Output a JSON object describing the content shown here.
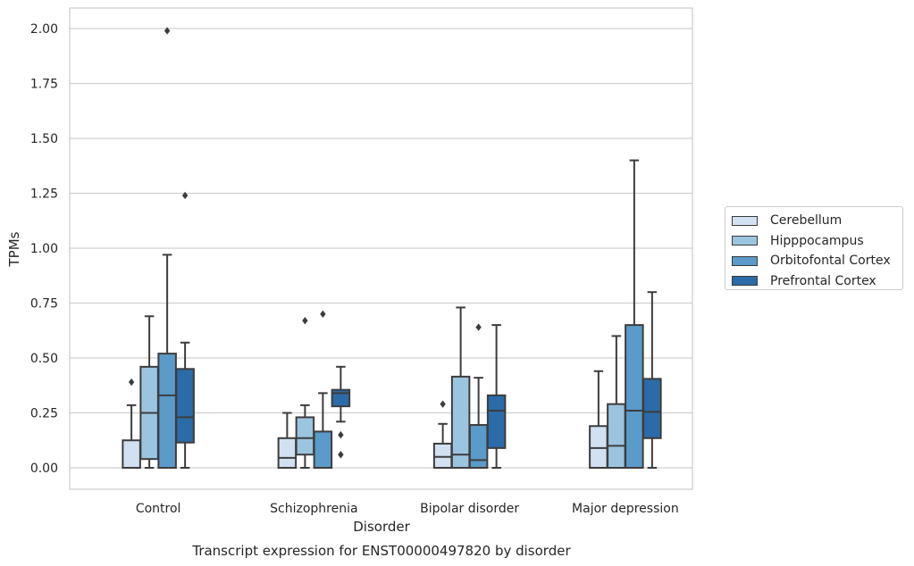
{
  "chart_data": {
    "type": "box",
    "title": "Transcript expression for ENST00000497820 by disorder",
    "xlabel": "Disorder",
    "ylabel": "TPMs",
    "ylim": [
      -0.1,
      2.1
    ],
    "yticks": [
      "0.00",
      "0.25",
      "0.50",
      "0.75",
      "1.00",
      "1.25",
      "1.50",
      "1.75",
      "2.00"
    ],
    "categories": [
      "Control",
      "Schizophrenia",
      "Bipolar disorder",
      "Major depression"
    ],
    "grid": "horizontal",
    "legend_position": "right",
    "series": [
      {
        "name": "Cerebellum",
        "color": "#d1e1f1",
        "boxes": [
          {
            "whislo": 0.0,
            "q1": 0.0,
            "med": 0.0,
            "q3": 0.125,
            "whishi": 0.285,
            "fliers": [
              0.39
            ]
          },
          {
            "whislo": 0.0,
            "q1": 0.0,
            "med": 0.045,
            "q3": 0.135,
            "whishi": 0.25,
            "fliers": []
          },
          {
            "whislo": 0.0,
            "q1": 0.0,
            "med": 0.05,
            "q3": 0.11,
            "whishi": 0.2,
            "fliers": [
              0.29
            ]
          },
          {
            "whislo": 0.0,
            "q1": 0.0,
            "med": 0.09,
            "q3": 0.19,
            "whishi": 0.44,
            "fliers": []
          }
        ]
      },
      {
        "name": "Hipppocampus",
        "color": "#9bc5df",
        "boxes": [
          {
            "whislo": 0.0,
            "q1": 0.04,
            "med": 0.25,
            "q3": 0.46,
            "whishi": 0.69,
            "fliers": []
          },
          {
            "whislo": 0.0,
            "q1": 0.06,
            "med": 0.135,
            "q3": 0.23,
            "whishi": 0.285,
            "fliers": [
              0.67
            ]
          },
          {
            "whislo": 0.0,
            "q1": 0.0,
            "med": 0.06,
            "q3": 0.415,
            "whishi": 0.73,
            "fliers": []
          },
          {
            "whislo": 0.0,
            "q1": 0.0,
            "med": 0.1,
            "q3": 0.29,
            "whishi": 0.6,
            "fliers": []
          }
        ]
      },
      {
        "name": "Orbitofontal Cortex",
        "color": "#5a9bc9",
        "boxes": [
          {
            "whislo": 0.0,
            "q1": 0.0,
            "med": 0.33,
            "q3": 0.52,
            "whishi": 0.97,
            "fliers": [
              1.99
            ]
          },
          {
            "whislo": 0.0,
            "q1": 0.0,
            "med": 0.0,
            "q3": 0.165,
            "whishi": 0.34,
            "fliers": [
              0.7
            ]
          },
          {
            "whislo": 0.0,
            "q1": 0.0,
            "med": 0.035,
            "q3": 0.195,
            "whishi": 0.41,
            "fliers": [
              0.64
            ]
          },
          {
            "whislo": 0.0,
            "q1": 0.0,
            "med": 0.26,
            "q3": 0.65,
            "whishi": 1.4,
            "fliers": []
          }
        ]
      },
      {
        "name": "Prefrontal Cortex",
        "color": "#2b6ba8",
        "boxes": [
          {
            "whislo": 0.0,
            "q1": 0.115,
            "med": 0.23,
            "q3": 0.45,
            "whishi": 0.57,
            "fliers": [
              1.24
            ]
          },
          {
            "whislo": 0.21,
            "q1": 0.28,
            "med": 0.34,
            "q3": 0.355,
            "whishi": 0.46,
            "fliers": [
              0.15,
              0.06
            ]
          },
          {
            "whislo": 0.0,
            "q1": 0.09,
            "med": 0.26,
            "q3": 0.33,
            "whishi": 0.65,
            "fliers": []
          },
          {
            "whislo": 0.0,
            "q1": 0.135,
            "med": 0.255,
            "q3": 0.405,
            "whishi": 0.8,
            "fliers": []
          }
        ]
      }
    ]
  }
}
